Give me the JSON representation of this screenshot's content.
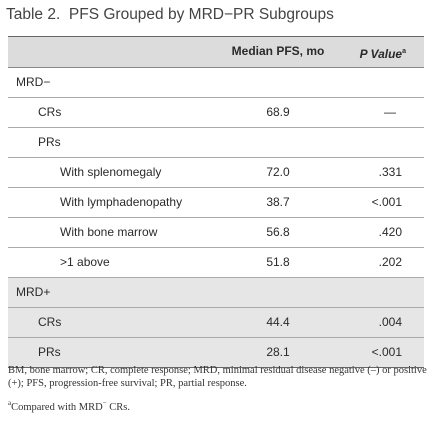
{
  "header": {
    "title": "Table 2.  PFS Grouped by MRD−PR Subgroups"
  },
  "table": {
    "columns": {
      "median": "Median PFS, mo",
      "p": "P Value",
      "p_marker": "a"
    },
    "sections": [
      {
        "label": "MRD−",
        "rows": [
          {
            "label": "CRs",
            "median": "68.9",
            "p": "—"
          },
          {
            "label": "PRs",
            "rows": [
              {
                "label": "With splenomegaly",
                "median": "72.0",
                "p": ".331"
              },
              {
                "label": "With lymphadenopathy",
                "median": "38.7",
                "p": "<.001"
              },
              {
                "label": "With bone marrow",
                "median": "56.8",
                "p": ".420"
              },
              {
                "label": ">1 above",
                "median": "51.8",
                "p": ".202"
              }
            ]
          }
        ]
      },
      {
        "label": "MRD+",
        "rows": [
          {
            "label": "CRs",
            "median": "44.4",
            "p": ".004"
          },
          {
            "label": "PRs",
            "median": "28.1",
            "p": "<.001"
          }
        ]
      }
    ]
  },
  "footnotes": {
    "abbreviations": "BM, bone marrow; CR, complete response; MRD, minimal residual disease negative (–) or positive (+); PFS, progression-free survival; PR, partial response.",
    "note": {
      "marker": "a",
      "text": "Compared with MRD",
      "sup": "−",
      "rest": " CRs."
    }
  }
}
